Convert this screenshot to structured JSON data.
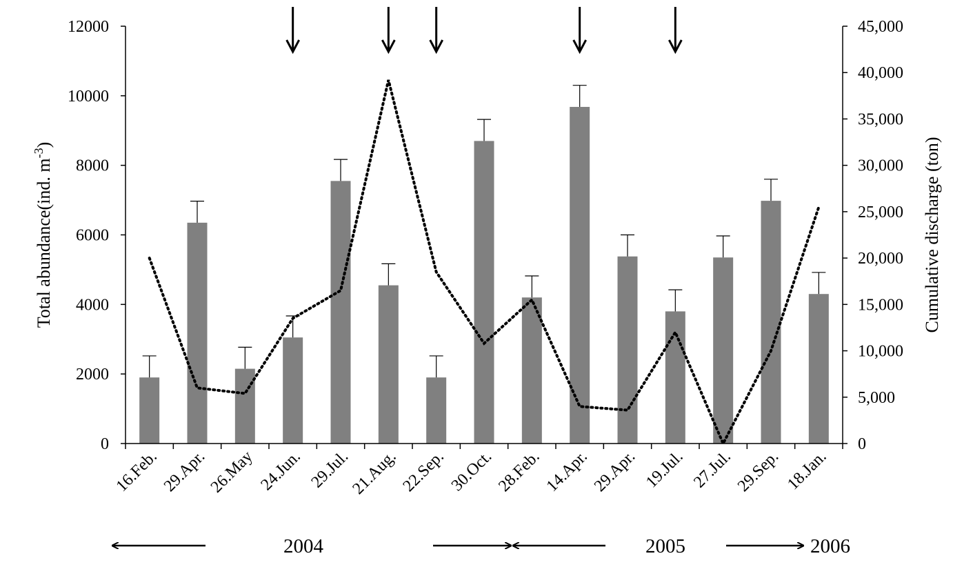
{
  "chart_data": {
    "type": "bar",
    "categories": [
      "16.Feb.",
      "29.Apr.",
      "26.May",
      "24.Jun.",
      "29.Jul.",
      "21.Aug.",
      "22.Sep.",
      "30.Oct.",
      "28.Feb.",
      "14.Apr.",
      "29.Apr.",
      "19.Jul.",
      "27.Jul.",
      "29.Sep.",
      "18.Jan."
    ],
    "series": [
      {
        "type": "bar",
        "axis": "left",
        "color": "#808080",
        "values": [
          1900,
          6350,
          2150,
          3050,
          7550,
          4550,
          1900,
          8700,
          4200,
          9680,
          5380,
          3800,
          5350,
          6980,
          4300
        ],
        "error": [
          620,
          620,
          620,
          620,
          620,
          620,
          620,
          620,
          620,
          620,
          620,
          620,
          620,
          620,
          620
        ]
      },
      {
        "type": "line",
        "style": "dotted",
        "axis": "right",
        "color": "#000000",
        "values": [
          20000,
          6000,
          5400,
          13500,
          16500,
          39200,
          18500,
          10800,
          15500,
          4000,
          3600,
          12000,
          0,
          10000,
          25500
        ]
      }
    ],
    "ylabel": "Total abundance(ind. m-3)",
    "ylabel_parts": {
      "main": "Total abundance(ind. m",
      "sup": "-3",
      "end": ")"
    },
    "y2label": "Cumulative discharge (ton)",
    "ylim": [
      0,
      12000
    ],
    "yticks": [
      "0",
      "2000",
      "4000",
      "6000",
      "8000",
      "10000",
      "12000"
    ],
    "y2lim": [
      0,
      45000
    ],
    "y2ticks": [
      "0",
      "5,000",
      "10,000",
      "15,000",
      "20,000",
      "25,000",
      "30,000",
      "35,000",
      "40,000",
      "45,000"
    ],
    "discharge_markers": [
      "24.Jun.",
      "21.Aug.",
      "22.Sep.",
      "14.Apr.",
      "19.Jul."
    ],
    "years": [
      "2004",
      "2005",
      "2006"
    ],
    "grid": false,
    "legend": "none"
  }
}
